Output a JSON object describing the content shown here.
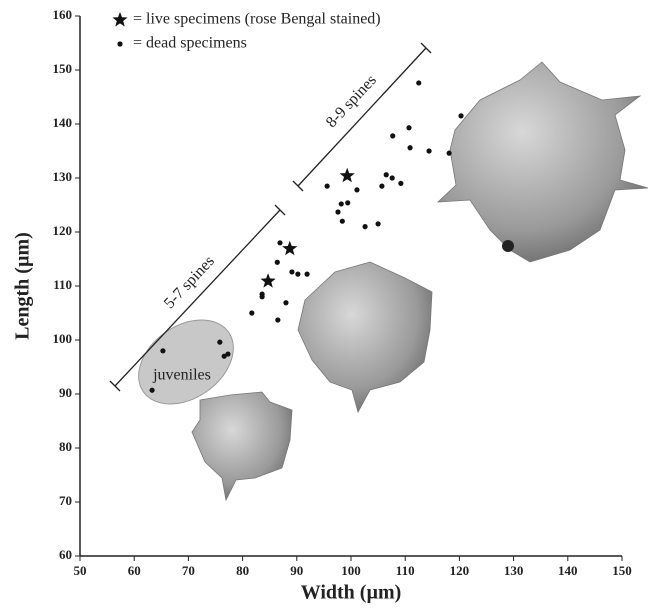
{
  "chart_data": {
    "type": "scatter",
    "x_label": "Width (µm)",
    "y_label": "Length (µm)",
    "xlim": [
      50,
      150
    ],
    "ylim": [
      60,
      160
    ],
    "xticks": [
      50,
      60,
      70,
      80,
      90,
      100,
      110,
      120,
      130,
      140,
      150
    ],
    "yticks": [
      60,
      70,
      80,
      90,
      100,
      110,
      120,
      130,
      140,
      150,
      160
    ],
    "annotations": [
      "5-7 spines",
      "8-9 spines",
      "juveniles"
    ],
    "series": [
      {
        "name": "= live specimens (rose Bengal stained)",
        "marker": "star",
        "color": "#111",
        "x": [
          84.7,
          88.7,
          99.3
        ],
        "values": [
          110.9,
          116.9,
          130.4
        ]
      },
      {
        "name": "= dead specimens",
        "marker": "dot",
        "color": "#111",
        "x": [
          65.3,
          63.3,
          75.8,
          76.6,
          77.3,
          81.7,
          83.6,
          83.6,
          86.5,
          86.9,
          86.4,
          88,
          89.1,
          90.2,
          91.9,
          95.6,
          97.6,
          98.2,
          98.4,
          99.4,
          101.1,
          102.6,
          105,
          105.7,
          106.5,
          107.6,
          107.7,
          109.2,
          110.7,
          110.9,
          112.5,
          114.4,
          118.1,
          120.3
        ],
        "values": [
          98,
          90.7,
          99.6,
          97,
          97.4,
          105,
          108,
          108.5,
          103.7,
          118,
          114.4,
          106.9,
          112.6,
          112.2,
          112.2,
          128.5,
          123.7,
          125.2,
          122,
          125.4,
          127.8,
          121,
          121.5,
          128.5,
          130.6,
          130,
          137.8,
          129,
          139.3,
          135.6,
          147.6,
          135,
          134.6,
          141.5
        ]
      }
    ]
  }
}
